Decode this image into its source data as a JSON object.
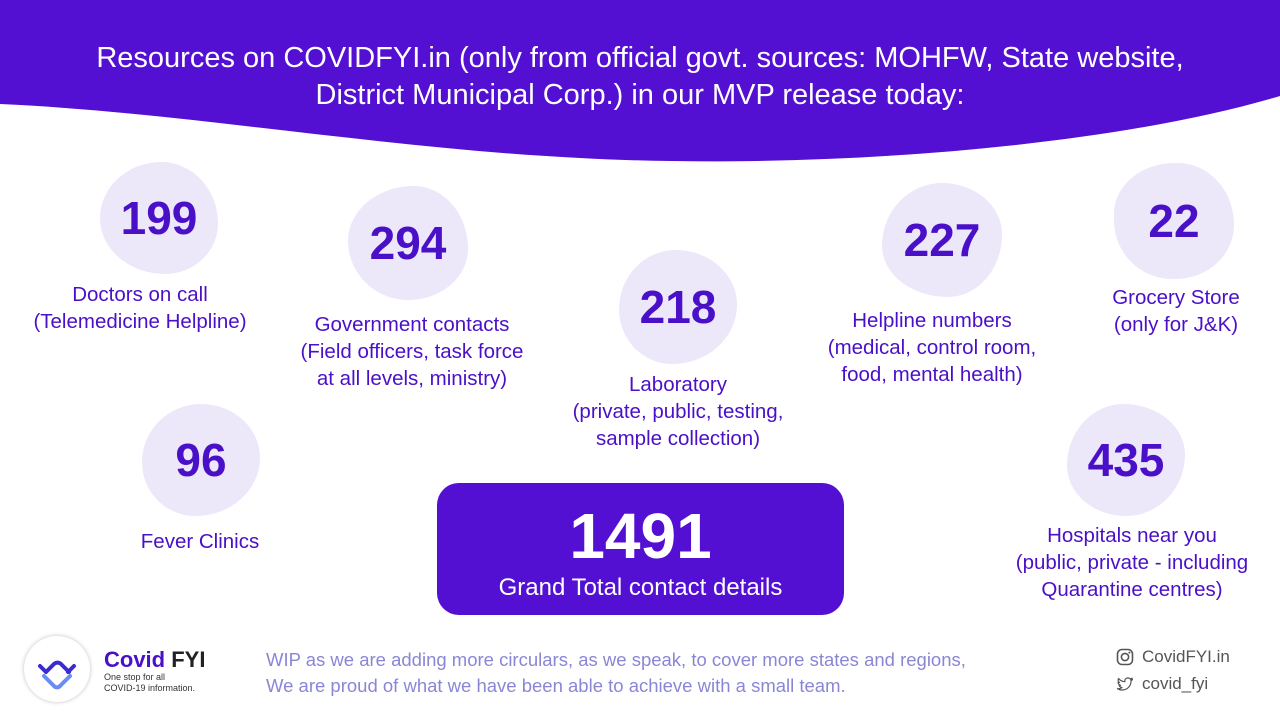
{
  "header": {
    "title_line1": "Resources on COVIDFYI.in (only from official govt. sources: MOHFW, State website,",
    "title_line2": "District Municipal Corp.) in our MVP release today:"
  },
  "stats": {
    "doctors": {
      "value": "199",
      "label": "Doctors on call\n(Telemedicine Helpline)"
    },
    "government": {
      "value": "294",
      "label": "Government contacts\n(Field officers, task force\nat all levels, ministry)"
    },
    "laboratory": {
      "value": "218",
      "label": "Laboratory\n(private, public, testing,\nsample collection)"
    },
    "helpline": {
      "value": "227",
      "label": "Helpline numbers\n(medical, control room,\nfood, mental health)"
    },
    "grocery": {
      "value": "22",
      "label": "Grocery Store\n(only for J&K)"
    },
    "fever": {
      "value": "96",
      "label": "Fever Clinics"
    },
    "hospitals": {
      "value": "435",
      "label": "Hospitals near you\n(public, private - including\nQuarantine centres)"
    }
  },
  "total": {
    "value": "1491",
    "label": "Grand Total contact details"
  },
  "footer": {
    "brand_covid": "Covid",
    "brand_fyi": " FYI",
    "tagline": "One stop for all\nCOVID-19 information.",
    "wip_line1": "WIP as we are adding more circulars, as we speak, to cover more states and regions,",
    "wip_line2": "We are proud of what we have been able to achieve with a small team.",
    "instagram": "CovidFYI.in",
    "twitter": "covid_fyi"
  },
  "icons": [
    "handshake-logo-icon",
    "instagram-icon",
    "twitter-icon"
  ],
  "colors": {
    "brand_purple": "#5410d2",
    "blob": "#ece7f9",
    "text_purple": "#4a10c8",
    "footer_text": "#8a86d6"
  }
}
